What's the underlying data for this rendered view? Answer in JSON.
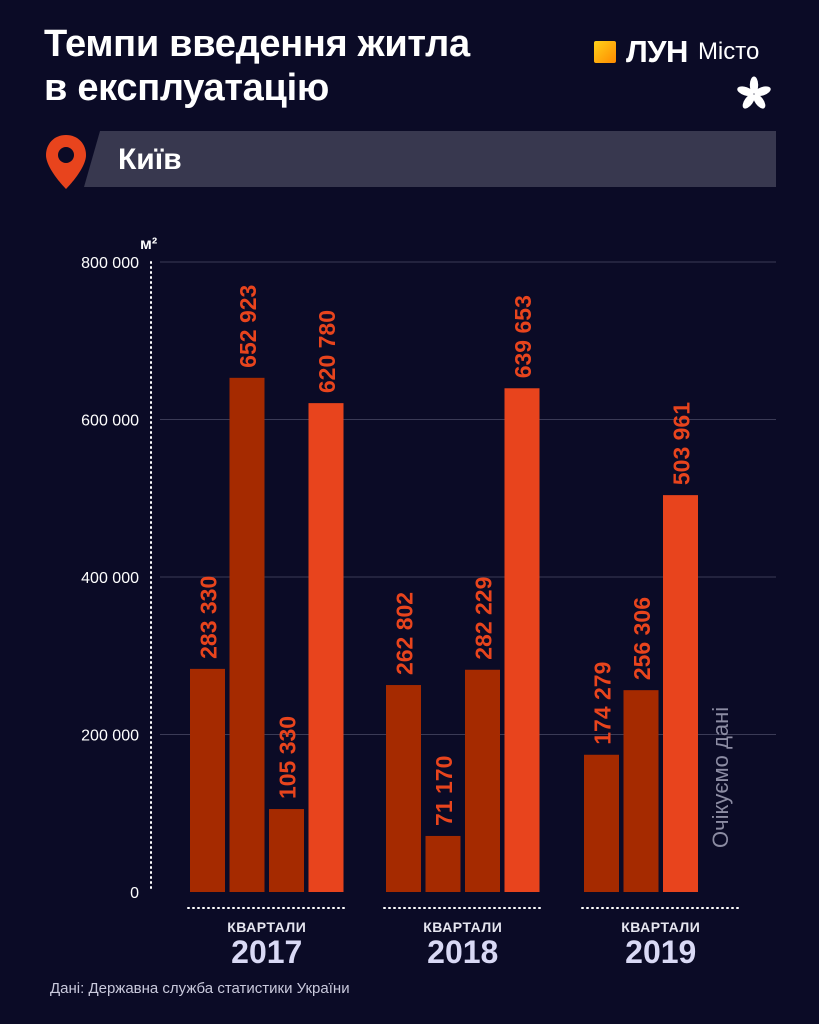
{
  "header": {
    "title_line1": "Темпи введення житла",
    "title_line2": "в експлуатацію"
  },
  "brand": {
    "name": "ЛУН",
    "sub": "Місто",
    "icon": "flower-icon"
  },
  "city": {
    "icon": "location-pin-icon",
    "name": "Київ"
  },
  "colors": {
    "background": "#0b0b26",
    "bar_dark": "#a52a00",
    "bar_highlight": "#e8441d",
    "label": "#e8441d",
    "axis_text": "#ffffff",
    "grid": "#3b3b56",
    "pending_text": "#8c8ca3"
  },
  "source": "Дані: Державна служба статистики України",
  "chart_data": {
    "type": "bar",
    "unit": "м²",
    "ylim": [
      0,
      800000
    ],
    "y_ticks": [
      {
        "value": 0,
        "label": "0"
      },
      {
        "value": 200000,
        "label": "200 000"
      },
      {
        "value": 400000,
        "label": "400 000"
      },
      {
        "value": 600000,
        "label": "600 000"
      },
      {
        "value": 800000,
        "label": "800 000"
      }
    ],
    "group_axis_label": "КВАРТАЛИ",
    "grid": true,
    "groups": [
      {
        "year": "2017",
        "values": [
          283330,
          652923,
          105330,
          620780
        ],
        "labels": [
          "283 330",
          "652 923",
          "105 330",
          "620 780"
        ]
      },
      {
        "year": "2018",
        "values": [
          262802,
          71170,
          282229,
          639653
        ],
        "labels": [
          "262 802",
          "71 170",
          "282 229",
          "639 653"
        ]
      },
      {
        "year": "2019",
        "values": [
          174279,
          256306,
          503961
        ],
        "labels": [
          "174 279",
          "256 306",
          "503 961"
        ],
        "pending_label": "Очікуємо дані"
      }
    ]
  }
}
